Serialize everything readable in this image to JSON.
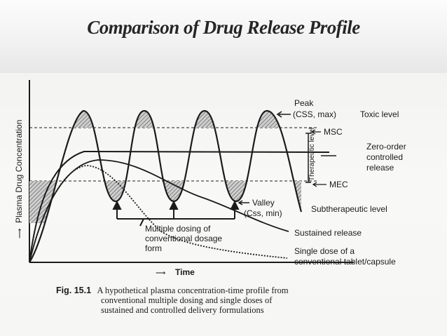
{
  "title": "Comparison of Drug Release Profile",
  "diagram": {
    "y_axis_label": "Plasma Drug Concentration",
    "x_axis_label": "Time",
    "peak_label": "Peak",
    "peak_sub": "(CSS, max)",
    "valley_label": "Valley",
    "valley_sub": "(Css, min)",
    "toxic_level": "Toxic level",
    "msc": "MSC",
    "mec": "MEC",
    "therapeutic_level": "Therapeutic level",
    "zero_order": [
      "Zero-order",
      "controlled",
      "release"
    ],
    "subtherapeutic_level": "Subtherapeutic level",
    "sustained_release": "Sustained release",
    "multiple_dosing": [
      "Multiple dosing of",
      "conventional dosage",
      "form"
    ],
    "single_dose": [
      "Single dose of a",
      "conventional tablet/capsule"
    ]
  },
  "caption": {
    "fig_no": "Fig. 15.1",
    "lines": [
      "A hypothetical plasma concentration-time profile from",
      "conventional multiple dosing and single doses of",
      "sustained and controlled delivery formulations"
    ]
  },
  "colors": {
    "ink": "#1b1b1b",
    "hatch": "#7a7a7a"
  }
}
